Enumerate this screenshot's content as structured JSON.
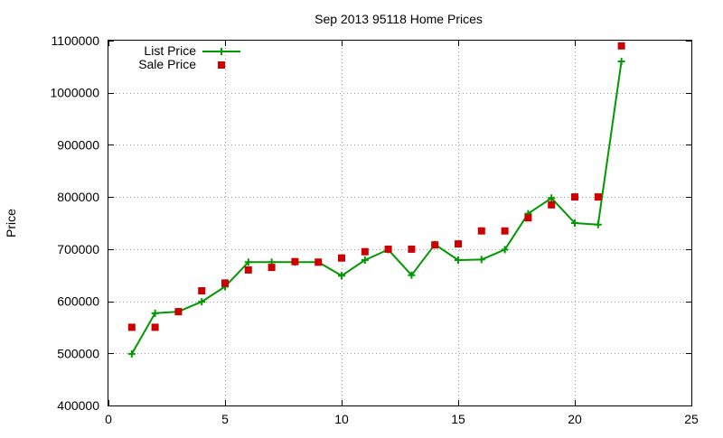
{
  "chart_data": {
    "type": "line",
    "title": "Sep 2013 95118 Home Prices",
    "xlabel": "",
    "ylabel": "Price",
    "xlim": [
      0,
      25
    ],
    "ylim": [
      400000,
      1100000
    ],
    "xticks": [
      "0",
      "5",
      "10",
      "15",
      "20",
      "25"
    ],
    "yticks": [
      "400000",
      "500000",
      "600000",
      "700000",
      "800000",
      "900000",
      "1000000",
      "1100000"
    ],
    "grid": true,
    "legend_position": "top-left",
    "series": [
      {
        "name": "List Price",
        "style": "line+cross",
        "color": "#009900",
        "x": [
          1,
          2,
          3,
          4,
          5,
          6,
          7,
          8,
          9,
          10,
          11,
          12,
          13,
          14,
          15,
          16,
          17,
          18,
          19,
          20,
          21,
          22
        ],
        "values": [
          499000,
          577000,
          580000,
          599000,
          628000,
          675000,
          675000,
          675000,
          675000,
          649000,
          679000,
          699000,
          650000,
          709000,
          679000,
          680000,
          699000,
          768000,
          798000,
          750000,
          747000,
          1060000
        ]
      },
      {
        "name": "Sale Price",
        "style": "square-markers",
        "color": "#cc0000",
        "x": [
          1,
          2,
          3,
          4,
          5,
          6,
          7,
          8,
          9,
          10,
          11,
          12,
          13,
          14,
          15,
          16,
          17,
          18,
          19,
          20,
          21,
          22
        ],
        "values": [
          550000,
          550000,
          580000,
          620000,
          635000,
          660000,
          665000,
          676000,
          675000,
          683000,
          695000,
          700000,
          700000,
          708000,
          710000,
          735000,
          735000,
          760000,
          785000,
          800000,
          800000,
          1090000
        ]
      }
    ]
  }
}
